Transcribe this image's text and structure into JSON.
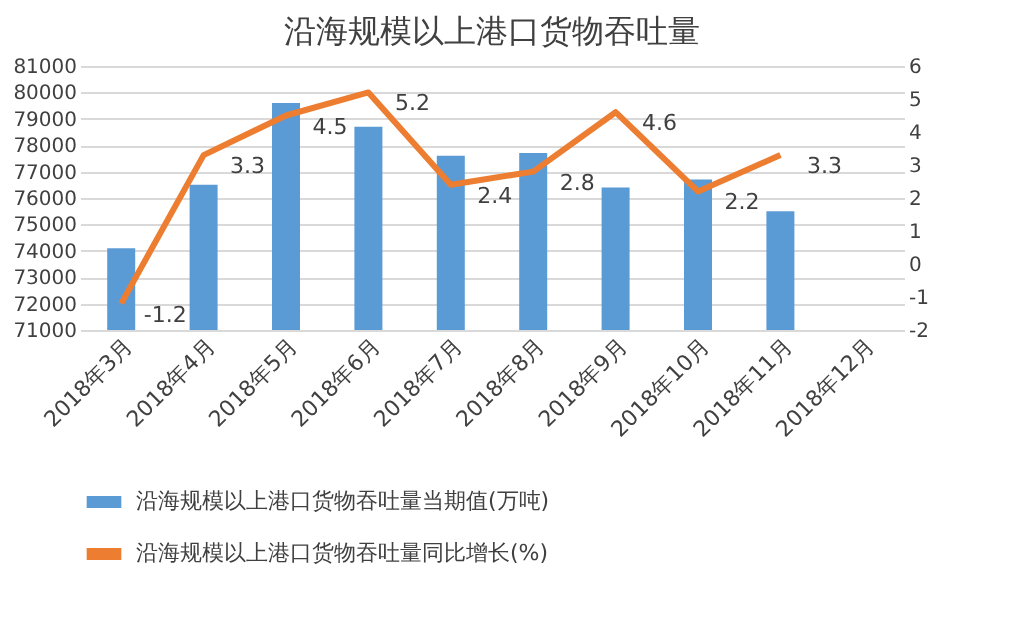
{
  "chart_data": {
    "type": "bar",
    "title": "沿海规模以上港口货物吞吐量",
    "categories": [
      "2018年3月",
      "2018年4月",
      "2018年5月",
      "2018年6月",
      "2018年7月",
      "2018年8月",
      "2018年9月",
      "2018年10月",
      "2018年11月",
      "2018年12月"
    ],
    "series": [
      {
        "name": "沿海规模以上港口货物吞吐量当期值(万吨)",
        "color": "#5b9bd5",
        "values": [
          74100,
          76500,
          79600,
          78700,
          77600,
          77700,
          76400,
          76700,
          75500,
          null
        ]
      },
      {
        "name": "沿海规模以上港口货物吞吐量同比增长(%)",
        "type": "line",
        "axis": "y2",
        "color": "#ed7d31",
        "data_labels": true,
        "values": [
          -1.2,
          3.3,
          4.5,
          5.2,
          2.4,
          2.8,
          4.6,
          2.2,
          3.3,
          null
        ]
      }
    ],
    "ylim": [
      71000,
      81000
    ],
    "yticks": [
      71000,
      72000,
      73000,
      74000,
      75000,
      76000,
      77000,
      78000,
      79000,
      80000,
      81000
    ],
    "y2lim": [
      -2,
      6
    ],
    "y2ticks": [
      -2,
      -1,
      0,
      1,
      2,
      3,
      4,
      5,
      6
    ],
    "grid": "y",
    "legend": "bottom"
  }
}
